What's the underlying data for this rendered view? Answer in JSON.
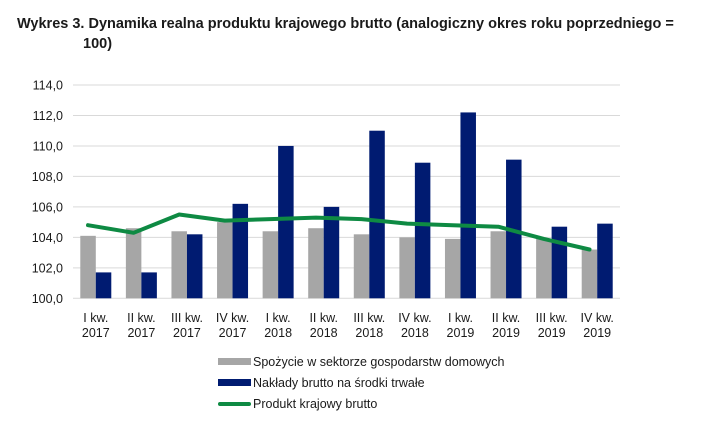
{
  "title": {
    "line1": "Wykres 3. Dynamika realna produktu krajowego brutto (analogiczny okres roku poprzedniego =",
    "line2": "100)"
  },
  "colors": {
    "consumption": "#a6a6a6",
    "investment": "#001b71",
    "gdp": "#0e8a43",
    "grid": "#d9d9d9"
  },
  "legend": [
    {
      "label": "Spożycie w sektorze gospodarstw domowych",
      "type": "bar",
      "color": "#a6a6a6"
    },
    {
      "label": "Nakłady brutto na środki trwałe",
      "type": "bar",
      "color": "#001b71"
    },
    {
      "label": "Produkt krajowy brutto",
      "type": "line",
      "color": "#0e8a43"
    }
  ],
  "chart_data": {
    "type": "bar",
    "title": "Wykres 3. Dynamika realna produktu krajowego brutto (analogiczny okres roku poprzedniego = 100)",
    "xlabel": "",
    "ylabel": "",
    "ylim": [
      100,
      114
    ],
    "yticks": [
      "100,0",
      "102,0",
      "104,0",
      "106,0",
      "108,0",
      "110,0",
      "112,0",
      "114,0"
    ],
    "grid": true,
    "legend_position": "bottom",
    "categories": [
      [
        "I kw.",
        "2017"
      ],
      [
        "II kw.",
        "2017"
      ],
      [
        "III kw.",
        "2017"
      ],
      [
        "IV kw.",
        "2017"
      ],
      [
        "I kw.",
        "2018"
      ],
      [
        "II kw.",
        "2018"
      ],
      [
        "III kw.",
        "2018"
      ],
      [
        "IV kw.",
        "2018"
      ],
      [
        "I kw.",
        "2019"
      ],
      [
        "II kw.",
        "2019"
      ],
      [
        "III kw.",
        "2019"
      ],
      [
        "IV kw.",
        "2019"
      ]
    ],
    "series": [
      {
        "name": "Spożycie w sektorze gospodarstw domowych",
        "type": "bar",
        "values": [
          104.1,
          104.6,
          104.4,
          105.0,
          104.4,
          104.6,
          104.2,
          104.0,
          103.9,
          104.4,
          103.9,
          103.2
        ]
      },
      {
        "name": "Nakłady brutto na środki trwałe",
        "type": "bar",
        "values": [
          101.7,
          101.7,
          104.2,
          106.2,
          110.0,
          106.0,
          111.0,
          108.9,
          112.2,
          109.1,
          104.7,
          104.9
        ]
      },
      {
        "name": "Produkt krajowy brutto",
        "type": "line",
        "values": [
          104.8,
          104.3,
          105.5,
          105.1,
          105.2,
          105.3,
          105.2,
          104.9,
          104.8,
          104.7,
          103.9,
          103.2
        ]
      }
    ]
  }
}
